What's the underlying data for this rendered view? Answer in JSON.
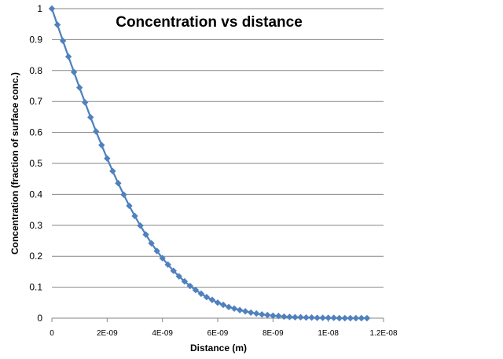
{
  "chart_data": {
    "type": "scatter",
    "title": "Concentration vs distance",
    "xlabel": "Distance (m)",
    "ylabel": "Concentration (fraction of surface conc.)",
    "xlim": [
      0,
      1.2e-08
    ],
    "ylim": [
      0,
      1
    ],
    "x_tick_values": [
      0,
      2e-09,
      4e-09,
      6e-09,
      8e-09,
      1e-08,
      1.2e-08
    ],
    "x_tick_labels": [
      "0",
      "2E-09",
      "4E-09",
      "6E-09",
      "8E-09",
      "1E-08",
      "1.2E-08"
    ],
    "y_tick_values": [
      0,
      0.1,
      0.2,
      0.3,
      0.4,
      0.5,
      0.6,
      0.7,
      0.8,
      0.9,
      1
    ],
    "y_tick_labels": [
      "0",
      "0.1",
      "0.2",
      "0.3",
      "0.4",
      "0.5",
      "0.6",
      "0.7",
      "0.8",
      "0.9",
      "1"
    ],
    "grid": "horizontal",
    "legend": "none",
    "marker": "diamond",
    "series_color": "#4F81BD",
    "series": [
      {
        "x": [
          0,
          2e-10,
          4e-10,
          6e-10,
          8e-10,
          1e-09,
          1.2e-09,
          1.4e-09,
          1.6e-09,
          1.8e-09,
          2e-09,
          2.2e-09,
          2.4e-09,
          2.6e-09,
          2.8e-09,
          3e-09,
          3.2e-09,
          3.4e-09,
          3.6e-09,
          3.8e-09,
          4e-09,
          4.2e-09,
          4.4e-09,
          4.6e-09,
          4.8e-09,
          5e-09,
          5.2e-09,
          5.4e-09,
          5.6e-09,
          5.8e-09,
          6e-09,
          6.2e-09,
          6.4e-09,
          6.6e-09,
          6.8e-09,
          7e-09,
          7.2e-09,
          7.4e-09,
          7.6e-09,
          7.8e-09,
          8e-09,
          8.2e-09,
          8.4e-09,
          8.6e-09,
          8.8e-09,
          9e-09,
          9.2e-09,
          9.4e-09,
          9.6e-09,
          9.8e-09,
          1e-08,
          1.02e-08,
          1.04e-08,
          1.06e-08,
          1.08e-08,
          1.1e-08,
          1.12e-08,
          1.14e-08
        ],
        "y": [
          1,
          0.948,
          0.896,
          0.845,
          0.795,
          0.745,
          0.697,
          0.649,
          0.603,
          0.559,
          0.516,
          0.475,
          0.436,
          0.399,
          0.363,
          0.33,
          0.299,
          0.27,
          0.242,
          0.217,
          0.194,
          0.173,
          0.153,
          0.135,
          0.119,
          0.104,
          0.091,
          0.079,
          0.068,
          0.059,
          0.05,
          0.043,
          0.036,
          0.031,
          0.026,
          0.022,
          0.018,
          0.015,
          0.012,
          0.01,
          0.008,
          0.007,
          0.005,
          0.004,
          0.003,
          0.003,
          0.002,
          0.002,
          0.001,
          0.001,
          0.001,
          0.001,
          0,
          0,
          0,
          0,
          0,
          0
        ]
      }
    ]
  }
}
